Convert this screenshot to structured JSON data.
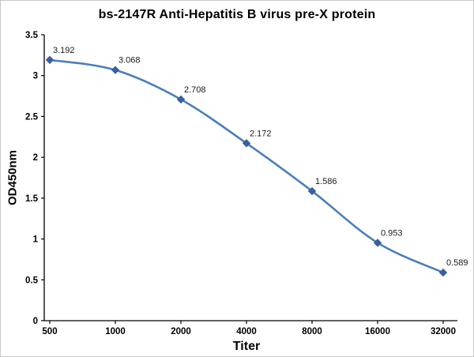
{
  "chart_data": {
    "type": "line",
    "title": "bs-2147R Anti-Hepatitis B virus pre-X protein",
    "xlabel": "Titer",
    "ylabel": "OD450nm",
    "categories": [
      "500",
      "1000",
      "2000",
      "4000",
      "8000",
      "16000",
      "32000"
    ],
    "series": [
      {
        "name": "OD450nm",
        "values": [
          3.192,
          3.068,
          2.708,
          2.172,
          1.586,
          0.953,
          0.589
        ],
        "point_labels": [
          "3.192",
          "3.068",
          "2.708",
          "2.172",
          "1.586",
          "0.953",
          "0.589"
        ]
      }
    ],
    "ylim": [
      0,
      3.5
    ],
    "ytick_labels": [
      "0",
      "0.5",
      "1",
      "1.5",
      "2",
      "2.5",
      "3",
      "3.5"
    ],
    "grid": false,
    "legend": "none",
    "marker_shape": "diamond",
    "line_color": "#4a7ebb",
    "marker_color": "#38609c",
    "axis_color": "#000000",
    "tick_text_color": "#000000",
    "label_text_color": "#1a1a1a",
    "background": "#ffffff"
  }
}
